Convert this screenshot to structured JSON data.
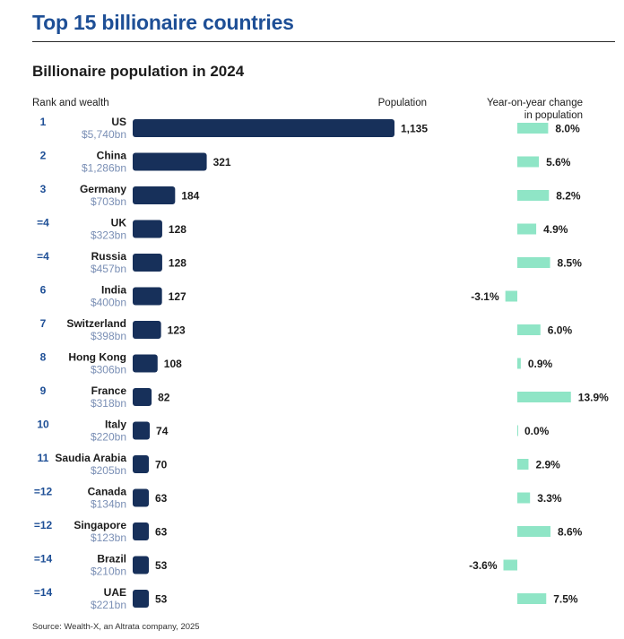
{
  "title": "Top 15 billionaire countries",
  "subtitle": "Billionaire population in 2024",
  "headers": {
    "rank_wealth": "Rank and wealth",
    "population": "Population",
    "yoy_line1": "Year-on-year change",
    "yoy_line2": "in population"
  },
  "source": "Source: Wealth-X, an Altrata company, 2025",
  "colors": {
    "title": "#1e4f96",
    "rank": "#1e4f96",
    "wealth": "#7a8fb5",
    "population_bar": "#17305a",
    "yoy_bar": "#8fe5c6"
  },
  "chart_data": {
    "type": "bar",
    "rows": [
      {
        "rank": "1",
        "country": "US",
        "wealth": "$5,740bn",
        "population": 1135,
        "population_label": "1,135",
        "yoy": 8.0,
        "yoy_label": "8.0%"
      },
      {
        "rank": "2",
        "country": "China",
        "wealth": "$1,286bn",
        "population": 321,
        "population_label": "321",
        "yoy": 5.6,
        "yoy_label": "5.6%"
      },
      {
        "rank": "3",
        "country": "Germany",
        "wealth": "$703bn",
        "population": 184,
        "population_label": "184",
        "yoy": 8.2,
        "yoy_label": "8.2%"
      },
      {
        "rank": "=4",
        "country": "UK",
        "wealth": "$323bn",
        "population": 128,
        "population_label": "128",
        "yoy": 4.9,
        "yoy_label": "4.9%"
      },
      {
        "rank": "=4",
        "country": "Russia",
        "wealth": "$457bn",
        "population": 128,
        "population_label": "128",
        "yoy": 8.5,
        "yoy_label": "8.5%"
      },
      {
        "rank": "6",
        "country": "India",
        "wealth": "$400bn",
        "population": 127,
        "population_label": "127",
        "yoy": -3.1,
        "yoy_label": "-3.1%"
      },
      {
        "rank": "7",
        "country": "Switzerland",
        "wealth": "$398bn",
        "population": 123,
        "population_label": "123",
        "yoy": 6.0,
        "yoy_label": "6.0%"
      },
      {
        "rank": "8",
        "country": "Hong Kong",
        "wealth": "$306bn",
        "population": 108,
        "population_label": "108",
        "yoy": 0.9,
        "yoy_label": "0.9%"
      },
      {
        "rank": "9",
        "country": "France",
        "wealth": "$318bn",
        "population": 82,
        "population_label": "82",
        "yoy": 13.9,
        "yoy_label": "13.9%"
      },
      {
        "rank": "10",
        "country": "Italy",
        "wealth": "$220bn",
        "population": 74,
        "population_label": "74",
        "yoy": 0.0,
        "yoy_label": "0.0%"
      },
      {
        "rank": "11",
        "country": "Saudia Arabia",
        "wealth": "$205bn",
        "population": 70,
        "population_label": "70",
        "yoy": 2.9,
        "yoy_label": "2.9%"
      },
      {
        "rank": "=12",
        "country": "Canada",
        "wealth": "$134bn",
        "population": 63,
        "population_label": "63",
        "yoy": 3.3,
        "yoy_label": "3.3%"
      },
      {
        "rank": "=12",
        "country": "Singapore",
        "wealth": "$123bn",
        "population": 63,
        "population_label": "63",
        "yoy": 8.6,
        "yoy_label": "8.6%"
      },
      {
        "rank": "=14",
        "country": "Brazil",
        "wealth": "$210bn",
        "population": 53,
        "population_label": "53",
        "yoy": -3.6,
        "yoy_label": "-3.6%"
      },
      {
        "rank": "=14",
        "country": "UAE",
        "wealth": "$221bn",
        "population": 53,
        "population_label": "53",
        "yoy": 7.5,
        "yoy_label": "7.5%"
      }
    ]
  }
}
